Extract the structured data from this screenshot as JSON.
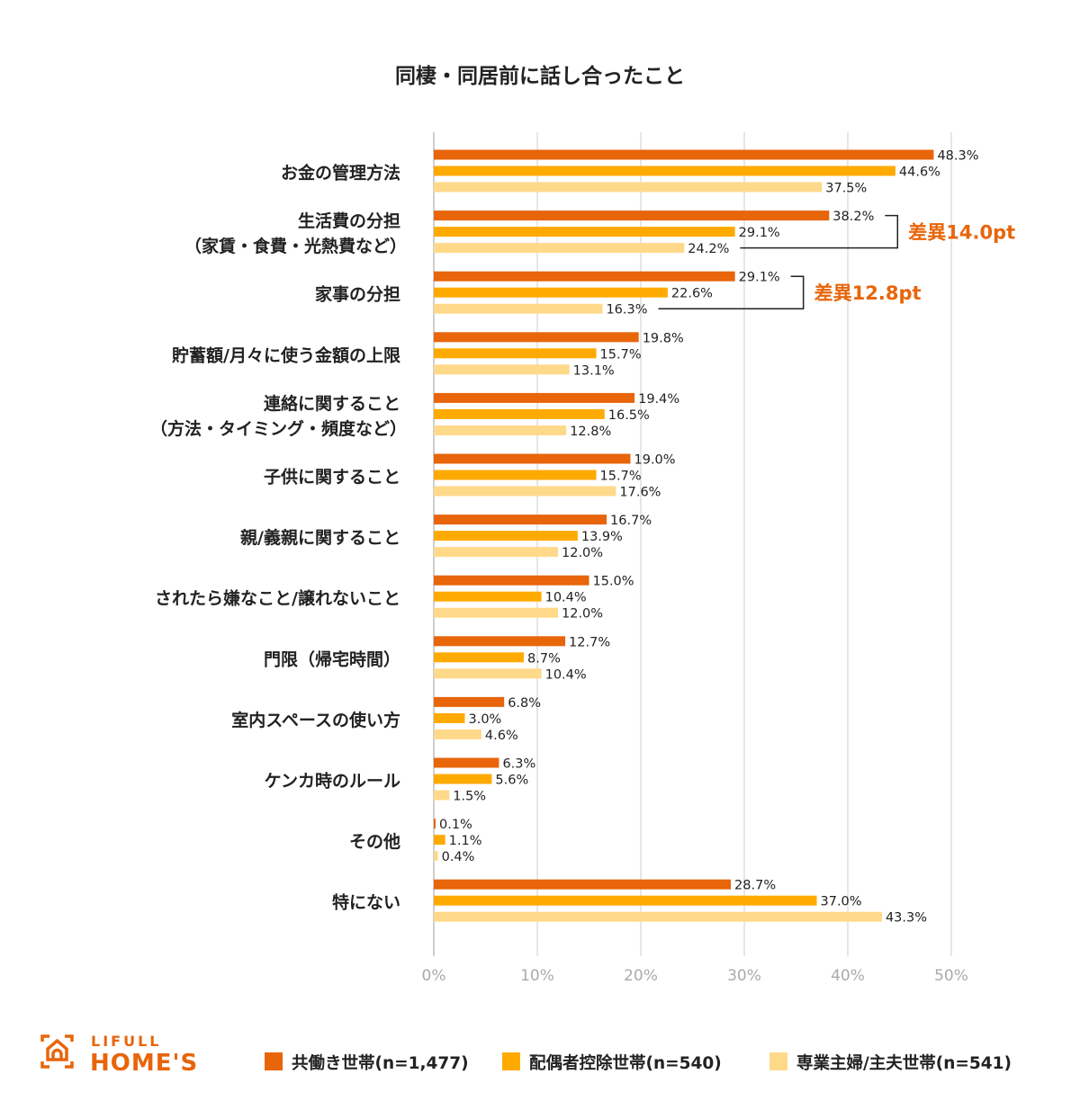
{
  "chart_data": {
    "type": "bar",
    "orientation": "horizontal",
    "title": "同棲・同居前に話し合ったこと",
    "categories": [
      [
        "お金の管理方法"
      ],
      [
        "生活費の分担",
        "（家賃・食費・光熱費など）"
      ],
      [
        "家事の分担"
      ],
      [
        "貯蓄額/月々に使う金額の上限"
      ],
      [
        "連絡に関すること",
        "（方法・タイミング・頻度など）"
      ],
      [
        "子供に関すること"
      ],
      [
        "親/義親に関すること"
      ],
      [
        "されたら嫌なこと/譲れないこと"
      ],
      [
        "門限（帰宅時間）"
      ],
      [
        "室内スペースの使い方"
      ],
      [
        "ケンカ時のルール"
      ],
      [
        "その他"
      ],
      [
        "特にない"
      ]
    ],
    "series": [
      {
        "name": "共働き世帯(n=1,477)",
        "color": "#E8650A",
        "values": [
          48.3,
          38.2,
          29.1,
          19.8,
          19.4,
          19.0,
          16.7,
          15.0,
          12.7,
          6.8,
          6.3,
          0.1,
          28.7
        ]
      },
      {
        "name": "配偶者控除世帯(n=540)",
        "color": "#FFAA00",
        "values": [
          44.6,
          29.1,
          22.6,
          15.7,
          16.5,
          15.7,
          13.9,
          10.4,
          8.7,
          3.0,
          5.6,
          1.1,
          37.0
        ]
      },
      {
        "name": "専業主婦/主夫世帯(n=541)",
        "color": "#FFD98A",
        "values": [
          37.5,
          24.2,
          16.3,
          13.1,
          12.8,
          17.6,
          12.0,
          12.0,
          10.4,
          4.6,
          1.5,
          0.4,
          43.3
        ]
      }
    ],
    "xlim": [
      0,
      50
    ],
    "xticks": [
      "0%",
      "10%",
      "20%",
      "30%",
      "40%",
      "50%"
    ],
    "grid": true,
    "legend_position": "bottom",
    "annotations": [
      {
        "category_index": 1,
        "text": "差異14.0pt",
        "from_series": 0,
        "to_series": 2
      },
      {
        "category_index": 2,
        "text": "差異12.8pt",
        "from_series": 0,
        "to_series": 2
      }
    ],
    "accent_color": "#E8650A"
  },
  "logo": {
    "line1": "LIFULL",
    "line2": "HOME'S"
  }
}
